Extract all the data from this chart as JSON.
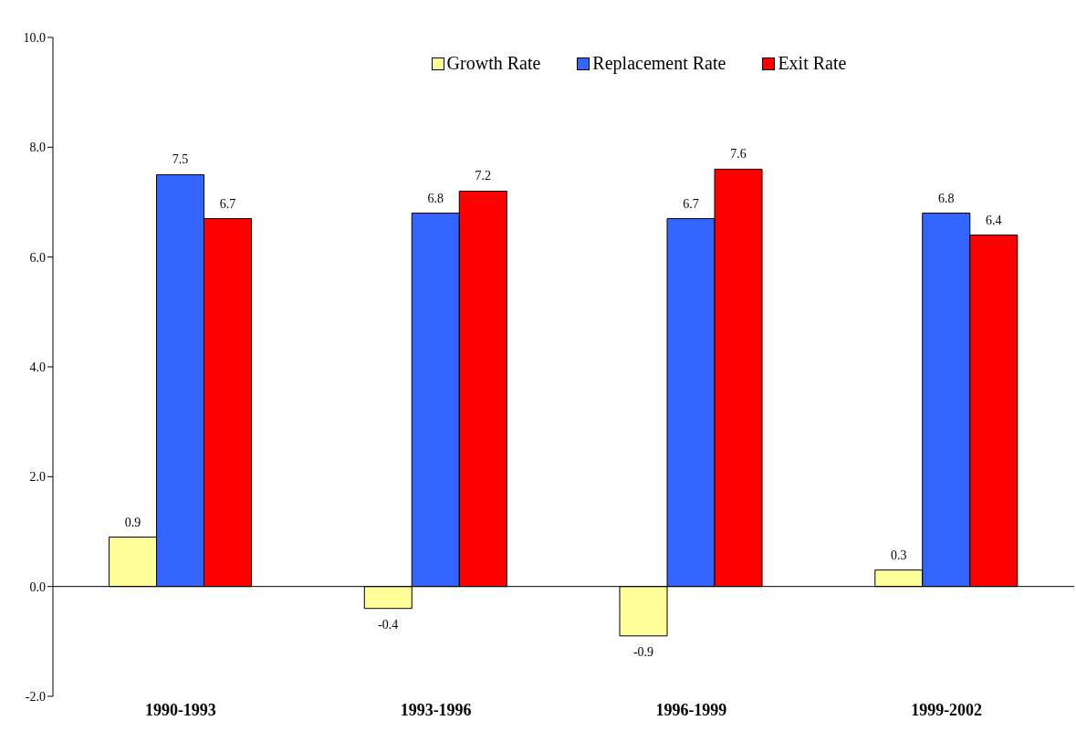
{
  "chart_data": {
    "type": "bar",
    "categories": [
      "1990-1993",
      "1993-1996",
      "1996-1999",
      "1999-2002"
    ],
    "series": [
      {
        "name": "Growth Rate",
        "color": "#ffff99",
        "values": [
          0.9,
          -0.4,
          -0.9,
          0.3
        ]
      },
      {
        "name": "Replacement Rate",
        "color": "#3366ff",
        "values": [
          7.5,
          6.8,
          6.7,
          6.8
        ]
      },
      {
        "name": "Exit Rate",
        "color": "#ff0000",
        "values": [
          6.7,
          7.2,
          7.6,
          6.4
        ]
      }
    ],
    "ylim": [
      -2,
      10
    ],
    "yticks": [
      {
        "value": -2,
        "label": "-2.0"
      },
      {
        "value": 0,
        "label": "0.0"
      },
      {
        "value": 2,
        "label": "2.0"
      },
      {
        "value": 4,
        "label": "4.0"
      },
      {
        "value": 6,
        "label": "6.0"
      },
      {
        "value": 8,
        "label": "8.0"
      },
      {
        "value": 10,
        "label": "10.0"
      }
    ],
    "ref_lines": [
      {
        "axis": "y",
        "value": 0
      }
    ],
    "data_labels": true,
    "legend": "top"
  }
}
